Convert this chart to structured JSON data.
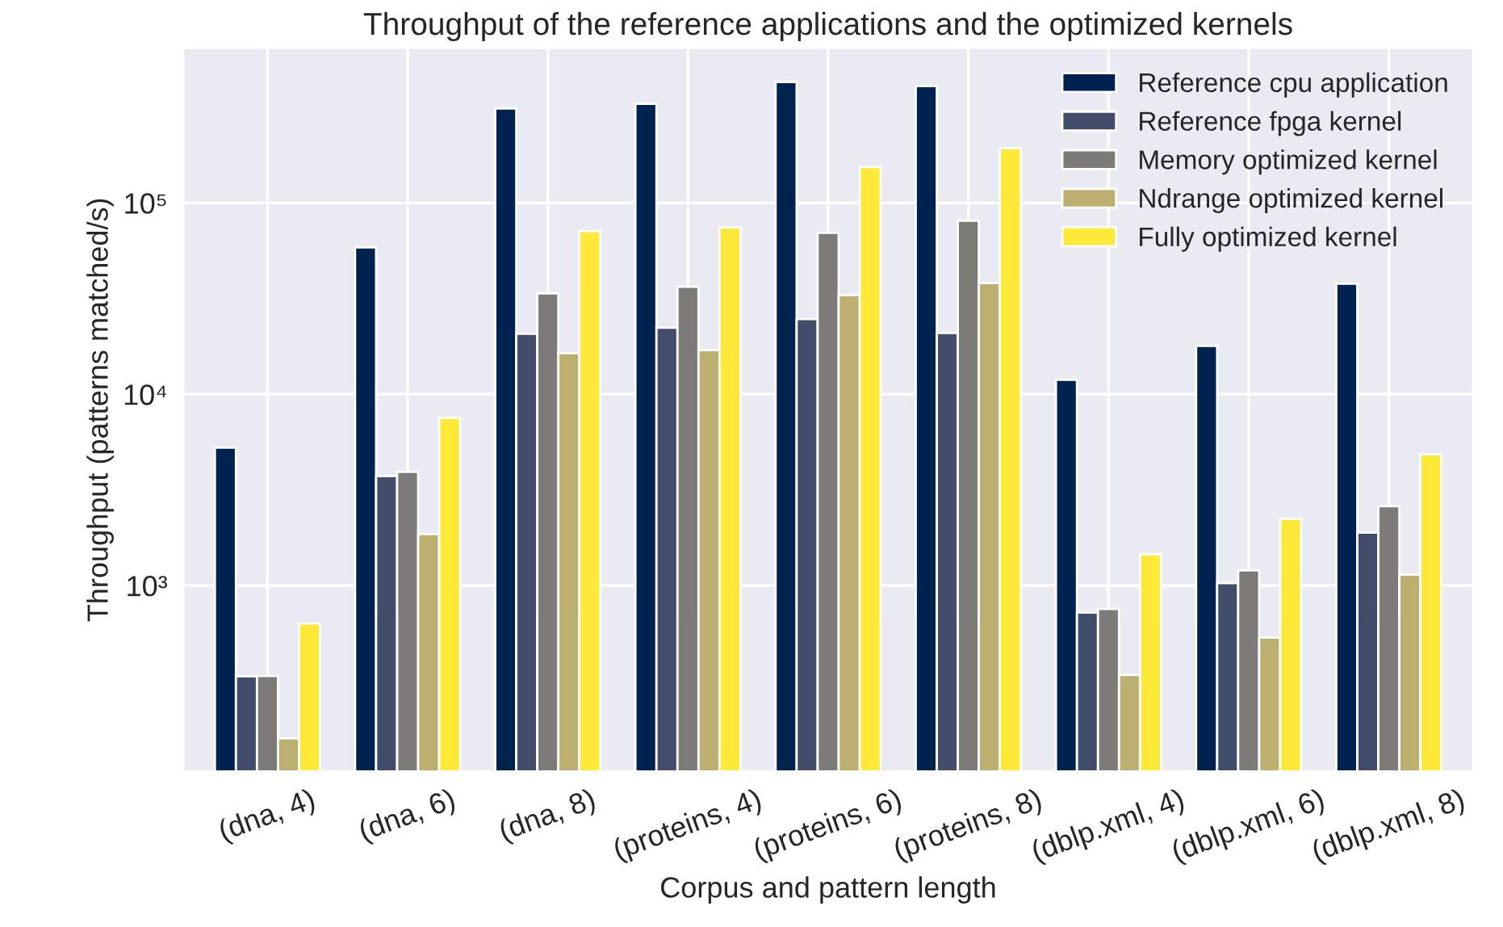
{
  "chart_data": {
    "type": "bar",
    "title": "Throughput of the reference applications and the optimized kernels",
    "xlabel": "Corpus and pattern length",
    "ylabel": "Throughput (patterns matched/s)",
    "categories": [
      "(dna, 4)",
      "(dna, 6)",
      "(dna, 8)",
      "(proteins, 4)",
      "(proteins, 6)",
      "(proteins, 8)",
      "(dblp.xml, 4)",
      "(dblp.xml, 6)",
      "(dblp.xml, 8)"
    ],
    "series": [
      {
        "name": "Reference cpu application",
        "color": "#00224e",
        "values": [
          5260,
          58600,
          312000,
          330000,
          428000,
          408000,
          11900,
          17900,
          37800
        ]
      },
      {
        "name": "Reference fpga kernel",
        "color": "#414d6b",
        "values": [
          335,
          3730,
          20700,
          22300,
          24700,
          20900,
          723,
          1030,
          1890
        ]
      },
      {
        "name": "Memory optimized kernel",
        "color": "#7c7b78",
        "values": [
          337,
          3930,
          33700,
          36500,
          69800,
          80700,
          755,
          1200,
          2600
        ]
      },
      {
        "name": "Ndrange optimized kernel",
        "color": "#bcaf6f",
        "values": [
          159,
          1860,
          16400,
          17000,
          33000,
          38100,
          341,
          535,
          1140
        ]
      },
      {
        "name": "Fully optimized kernel",
        "color": "#fee838",
        "values": [
          634,
          7530,
          71300,
          74600,
          154000,
          193000,
          1460,
          2230,
          4860
        ]
      }
    ],
    "log": "y",
    "ylim": [
      107,
      644000
    ],
    "yticks": [
      {
        "value": 1000,
        "label": "10³"
      },
      {
        "value": 10000,
        "label": "10⁴"
      },
      {
        "value": 100000,
        "label": "10⁵"
      }
    ],
    "grid": true,
    "legend": "top right"
  }
}
